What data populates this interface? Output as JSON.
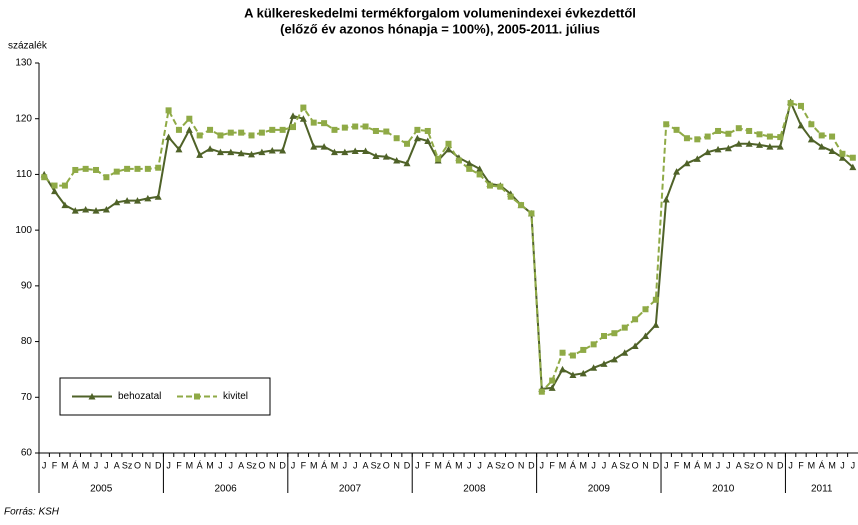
{
  "chart_data": {
    "type": "line",
    "title": [
      "A külkereskedelmi termékforgalom volumenindexei évkezdettől",
      "(előző év azonos hónapja = 100%), 2005-2011. július"
    ],
    "ylabel": "százalék",
    "source": "Forrás: KSH",
    "categories": [
      "J",
      "F",
      "M",
      "Á",
      "M",
      "J",
      "J",
      "A",
      "Sz",
      "O",
      "N",
      "D",
      "J",
      "F",
      "M",
      "Á",
      "M",
      "J",
      "J",
      "A",
      "Sz",
      "O",
      "N",
      "D",
      "J",
      "F",
      "M",
      "Á",
      "M",
      "J",
      "J",
      "A",
      "Sz",
      "O",
      "N",
      "D",
      "J",
      "F",
      "M",
      "Á",
      "M",
      "J",
      "J",
      "A",
      "Sz",
      "O",
      "N",
      "D",
      "J",
      "F",
      "M",
      "Á",
      "M",
      "J",
      "J",
      "A",
      "Sz",
      "O",
      "N",
      "D",
      "J",
      "F",
      "M",
      "Á",
      "M",
      "J",
      "J",
      "A",
      "Sz",
      "O",
      "N",
      "D",
      "J",
      "F",
      "M",
      "Á",
      "M",
      "J",
      "J"
    ],
    "years": [
      "2005",
      "2006",
      "2007",
      "2008",
      "2009",
      "2010",
      "2011"
    ],
    "ylim": [
      60,
      130
    ],
    "yticks": [
      60,
      70,
      80,
      90,
      100,
      110,
      120,
      130
    ],
    "legend": "bottom-left",
    "series": [
      {
        "name": "behozatal",
        "color": "#4f6228",
        "marker": "triangle",
        "dash": false,
        "values": [
          110,
          107,
          104.5,
          103.5,
          103.7,
          103.5,
          103.7,
          105,
          105.3,
          105.3,
          105.7,
          106,
          116.7,
          114.5,
          118,
          113.5,
          114.6,
          114,
          114,
          113.8,
          113.6,
          114,
          114.3,
          114.3,
          120.5,
          120,
          115,
          115,
          114,
          114,
          114.2,
          114.2,
          113.3,
          113.2,
          112.5,
          112,
          116.5,
          116,
          112.5,
          114.5,
          113,
          112,
          111,
          108.3,
          108,
          106.5,
          104.5,
          103,
          71.5,
          71.7,
          75,
          74,
          74.3,
          75.3,
          76,
          76.8,
          78,
          79.2,
          81,
          83,
          105.5,
          110.5,
          112,
          112.8,
          114,
          114.5,
          114.7,
          115.5,
          115.5,
          115.3,
          115,
          115,
          123,
          118.8,
          116.3,
          115,
          114.2,
          113,
          111.3
        ]
      },
      {
        "name": "kivitel",
        "color": "#8faa46",
        "marker": "square",
        "dash": true,
        "values": [
          109.5,
          108,
          108,
          110.8,
          111,
          110.8,
          109.5,
          110.5,
          111,
          111,
          111,
          111.2,
          121.5,
          118,
          120,
          117,
          118,
          117,
          117.5,
          117.5,
          117,
          117.5,
          118,
          118,
          118.5,
          122,
          119.3,
          119.2,
          118,
          118.4,
          118.6,
          118.6,
          117.8,
          117.7,
          116.5,
          115.5,
          118,
          117.8,
          112.8,
          115.5,
          112.5,
          111,
          110,
          108,
          107.8,
          106,
          104.5,
          103,
          71,
          73,
          78,
          77.5,
          78.5,
          79.5,
          81,
          81.5,
          82.5,
          84,
          85.8,
          87.5,
          119,
          118,
          116.5,
          116.3,
          116.8,
          117.8,
          117.3,
          118.3,
          117.8,
          117.2,
          116.8,
          116.7,
          122.8,
          122.3,
          119,
          117,
          116.8,
          113.7,
          113
        ]
      }
    ]
  }
}
